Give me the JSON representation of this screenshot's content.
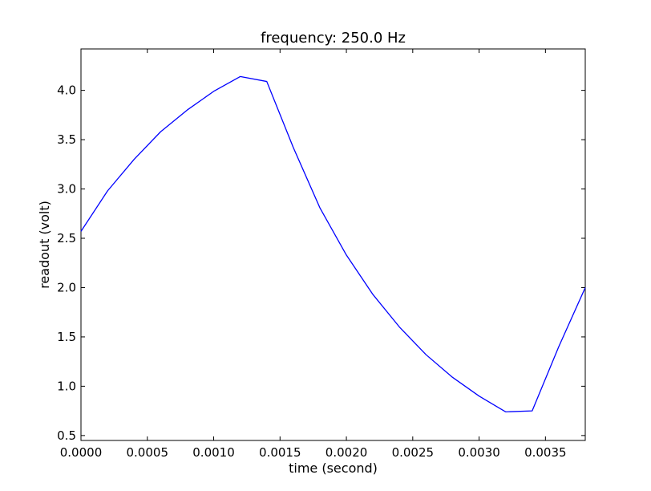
{
  "chart_data": {
    "type": "line",
    "title": "frequency: 250.0 Hz",
    "xlabel": "time (second)",
    "ylabel": "readout (volt)",
    "xlim": [
      0.0,
      0.0038
    ],
    "ylim": [
      0.45,
      4.42
    ],
    "grid": false,
    "x_ticks": [
      0.0,
      0.0005,
      0.001,
      0.0015,
      0.002,
      0.0025,
      0.003,
      0.0035
    ],
    "x_tick_labels": [
      "0.0000",
      "0.0005",
      "0.0010",
      "0.0015",
      "0.0020",
      "0.0025",
      "0.0030",
      "0.0035"
    ],
    "y_ticks": [
      0.5,
      1.0,
      1.5,
      2.0,
      2.5,
      3.0,
      3.5,
      4.0
    ],
    "y_tick_labels": [
      "0.5",
      "1.0",
      "1.5",
      "2.0",
      "2.5",
      "3.0",
      "3.5",
      "4.0"
    ],
    "line_color": "#0000ff",
    "series": [
      {
        "x": [
          0.0,
          0.0002,
          0.0004,
          0.0006,
          0.0008,
          0.001,
          0.0012,
          0.0014,
          0.0016,
          0.0018,
          0.002,
          0.0022,
          0.0024,
          0.0026,
          0.0028,
          0.003,
          0.0032,
          0.0034,
          0.0036,
          0.0038
        ],
        "y": [
          2.57,
          2.98,
          3.3,
          3.58,
          3.8,
          3.99,
          4.14,
          4.09,
          3.42,
          2.81,
          2.33,
          1.93,
          1.6,
          1.32,
          1.09,
          0.9,
          0.74,
          0.75,
          1.4,
          2.0
        ]
      }
    ]
  }
}
